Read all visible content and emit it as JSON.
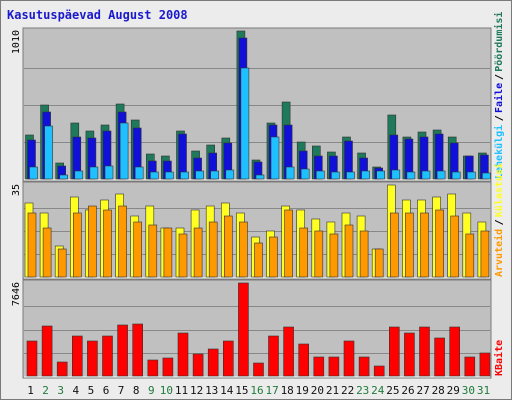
{
  "title": "Kasutuspäevad August 2008",
  "colors": {
    "pageBg": "#ececec",
    "panelBg": "#c0c0c0",
    "grid": "#888888",
    "hits": "#1e7a5a",
    "files": "#1010d8",
    "pages": "#1ec0ff",
    "visits": "#ffff22",
    "sites": "#ff9900",
    "kbytes": "#ff0000",
    "weekday": "#111111",
    "weekend": "#1f7a3a"
  },
  "chart_data": [
    {
      "type": "bar",
      "panel": "top",
      "ymax_label": "1010",
      "legend_right": [
        "Pöördumisi",
        "/",
        "Faile",
        "/",
        "Lehekülgi"
      ],
      "categories": [
        "1",
        "2",
        "3",
        "4",
        "5",
        "6",
        "7",
        "8",
        "9",
        "10",
        "11",
        "12",
        "13",
        "14",
        "15",
        "16",
        "17",
        "18",
        "19",
        "20",
        "21",
        "22",
        "23",
        "24",
        "25",
        "26",
        "27",
        "28",
        "29",
        "30",
        "31"
      ],
      "series": [
        {
          "name": "Pöördumisi",
          "color": "#1e7a5a",
          "values": [
            300,
            505,
            110,
            385,
            330,
            370,
            510,
            400,
            170,
            160,
            325,
            190,
            235,
            280,
            1010,
            130,
            380,
            525,
            250,
            225,
            185,
            290,
            175,
            85,
            435,
            285,
            320,
            335,
            285,
            160,
            175
          ]
        },
        {
          "name": "Faile",
          "color": "#1010d8",
          "values": [
            265,
            460,
            90,
            290,
            280,
            330,
            460,
            350,
            120,
            125,
            310,
            145,
            175,
            245,
            960,
            115,
            370,
            370,
            190,
            155,
            155,
            260,
            145,
            75,
            300,
            270,
            285,
            305,
            245,
            155,
            165
          ]
        },
        {
          "name": "Lehekülgi",
          "color": "#1ec0ff",
          "values": [
            80,
            360,
            25,
            55,
            80,
            90,
            385,
            80,
            45,
            45,
            45,
            55,
            55,
            60,
            760,
            30,
            290,
            80,
            65,
            55,
            45,
            45,
            55,
            55,
            60,
            50,
            55,
            55,
            45,
            50,
            40
          ]
        }
      ]
    },
    {
      "type": "bar",
      "panel": "middle",
      "ymax_label": "35",
      "legend_right": [
        "Külastusi",
        "/",
        "Arvuteid"
      ],
      "categories": [
        "1",
        "2",
        "3",
        "4",
        "5",
        "6",
        "7",
        "8",
        "9",
        "10",
        "11",
        "12",
        "13",
        "14",
        "15",
        "16",
        "17",
        "18",
        "19",
        "20",
        "21",
        "22",
        "23",
        "24",
        "25",
        "26",
        "27",
        "28",
        "29",
        "30",
        "31"
      ],
      "series": [
        {
          "name": "Külastusi",
          "color": "#ffff22",
          "values": [
            24,
            21,
            10,
            26,
            22,
            25,
            27,
            20,
            23,
            16,
            16,
            22,
            23,
            24,
            21,
            13,
            15,
            23,
            22,
            19,
            18,
            21,
            20,
            9,
            30,
            25,
            25,
            26,
            27,
            21,
            18
          ]
        },
        {
          "name": "Arvuteid",
          "color": "#ff9900",
          "values": [
            21,
            16,
            9,
            21,
            23,
            22,
            23,
            18,
            17,
            16,
            14,
            16,
            18,
            20,
            18,
            11,
            13,
            22,
            16,
            15,
            14,
            17,
            15,
            9,
            21,
            21,
            21,
            22,
            20,
            14,
            15
          ]
        }
      ]
    },
    {
      "type": "bar",
      "panel": "bottom",
      "ymax_label": "7646",
      "legend_right": [
        "KBaite"
      ],
      "categories": [
        "1",
        "2",
        "3",
        "4",
        "5",
        "6",
        "7",
        "8",
        "9",
        "10",
        "11",
        "12",
        "13",
        "14",
        "15",
        "16",
        "17",
        "18",
        "19",
        "20",
        "21",
        "22",
        "23",
        "24",
        "25",
        "26",
        "27",
        "28",
        "29",
        "30",
        "31"
      ],
      "series": [
        {
          "name": "KBaite",
          "color": "#ff0000",
          "values": [
            2900,
            4100,
            1150,
            3250,
            2900,
            3250,
            4200,
            4250,
            1350,
            1500,
            3500,
            1800,
            2200,
            2850,
            7646,
            1100,
            3300,
            4050,
            2650,
            1550,
            1550,
            2900,
            1600,
            850,
            4050,
            3550,
            4000,
            3100,
            4000,
            1600,
            1900
          ]
        }
      ]
    }
  ]
}
